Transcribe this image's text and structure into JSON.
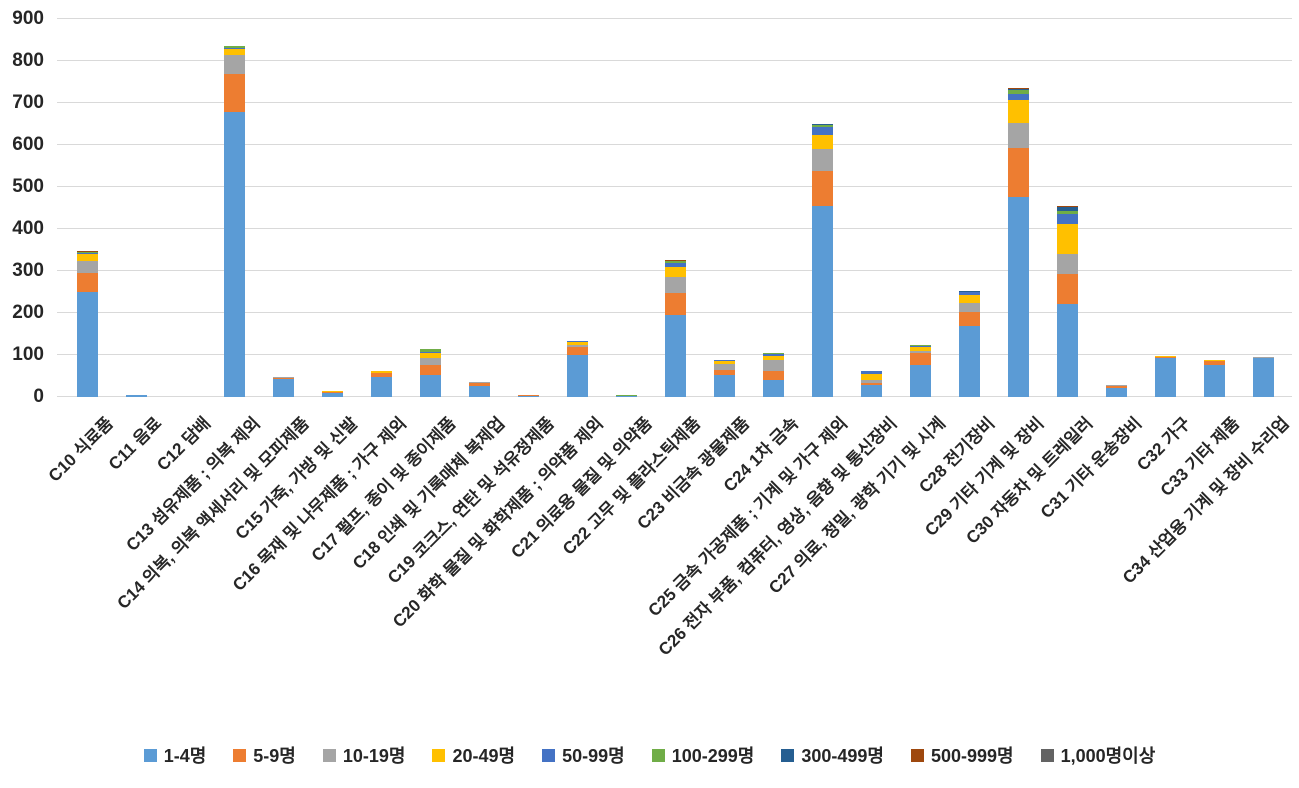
{
  "chart_data": {
    "type": "bar",
    "stacked": true,
    "title": "",
    "xlabel": "",
    "ylabel": "",
    "ylim": [
      0,
      900
    ],
    "y_ticks": [
      0,
      100,
      200,
      300,
      400,
      500,
      600,
      700,
      800,
      900
    ],
    "grid": true,
    "legend_position": "bottom",
    "categories": [
      "C10 식료품",
      "C11 음료",
      "C12 담배",
      "C13 섬유제품 ; 의복 제외",
      "C14 의복, 의복 액세서리 및 모피제품",
      "C15 가죽, 가방 및 신발",
      "C16 목재 및 나무제품 ; 가구 제외",
      "C17 펄프, 종이 및 종이제품",
      "C18 인쇄 및 기록매체 복제업",
      "C19 코크스, 연탄 및 석유정제품",
      "C20 화학 물질 및 화학제품 ; 의약품 제외",
      "C21 의료용 물질 및 의약품",
      "C22 고무 및 플라스틱제품",
      "C23 비금속 광물제품",
      "C24 1차 금속",
      "C25 금속 가공제품 ; 기계 및 가구 제외",
      "C26 전자 부품, 컴퓨터, 영상, 음향 및 통신장비",
      "C27 의료, 정밀, 광학 기기 및 시계",
      "C28 전기장비",
      "C29 기타 기계 및 장비",
      "C30 자동차 및 트레일러",
      "C31 기타 운송장비",
      "C32 가구",
      "C33 기타 제품",
      "C34 산업용 기계 및 장비 수리업"
    ],
    "series": [
      {
        "name": "1-4명",
        "color": "#5B9BD5",
        "values": [
          251,
          5,
          0,
          678,
          42,
          9,
          48,
          52,
          26,
          2,
          100,
          2,
          196,
          52,
          40,
          455,
          28,
          76,
          170,
          477,
          221,
          21,
          92,
          77,
          92
        ]
      },
      {
        "name": "5-9명",
        "color": "#ED7D31",
        "values": [
          44,
          1,
          0,
          92,
          3,
          3,
          8,
          24,
          7,
          3,
          18,
          0,
          52,
          12,
          22,
          83,
          6,
          28,
          33,
          115,
          72,
          5,
          3,
          9,
          0
        ]
      },
      {
        "name": "10-19명",
        "color": "#A5A5A5",
        "values": [
          30,
          0,
          0,
          44,
          3,
          0,
          2,
          17,
          2,
          0,
          7,
          0,
          37,
          14,
          25,
          52,
          6,
          6,
          20,
          61,
          48,
          2,
          0,
          0,
          4
        ]
      },
      {
        "name": "20-49명",
        "color": "#FFC000",
        "values": [
          16,
          0,
          0,
          15,
          0,
          3,
          4,
          13,
          0,
          0,
          5,
          0,
          24,
          7,
          10,
          34,
          16,
          10,
          20,
          54,
          70,
          0,
          3,
          2,
          0
        ]
      },
      {
        "name": "50-99명",
        "color": "#4472C4",
        "values": [
          3,
          0,
          0,
          3,
          0,
          0,
          0,
          2,
          0,
          0,
          3,
          0,
          11,
          3,
          6,
          20,
          6,
          2,
          6,
          15,
          25,
          0,
          0,
          0,
          0
        ]
      },
      {
        "name": "100-299명",
        "color": "#70AD47",
        "values": [
          2,
          0,
          0,
          3,
          0,
          0,
          0,
          7,
          0,
          0,
          0,
          3,
          5,
          0,
          2,
          4,
          0,
          2,
          0,
          8,
          8,
          0,
          0,
          0,
          0
        ]
      },
      {
        "name": "300-499명",
        "color": "#255E91",
        "values": [
          0,
          0,
          0,
          0,
          0,
          0,
          0,
          0,
          0,
          0,
          0,
          0,
          0,
          0,
          0,
          2,
          0,
          0,
          4,
          3,
          8,
          0,
          0,
          0,
          0
        ]
      },
      {
        "name": "500-999명",
        "color": "#9E480E",
        "values": [
          2,
          0,
          0,
          0,
          0,
          0,
          0,
          0,
          0,
          0,
          0,
          0,
          2,
          0,
          0,
          0,
          0,
          0,
          0,
          2,
          3,
          0,
          0,
          0,
          0
        ]
      },
      {
        "name": "1,000명이상",
        "color": "#636363",
        "values": [
          0,
          0,
          0,
          0,
          0,
          0,
          0,
          0,
          0,
          0,
          0,
          0,
          0,
          0,
          0,
          0,
          0,
          0,
          0,
          0,
          0,
          0,
          0,
          0,
          0
        ]
      }
    ],
    "colors": {
      "gridline": "#d9d9d9",
      "axis_text": "#262626",
      "background": "#ffffff"
    }
  }
}
